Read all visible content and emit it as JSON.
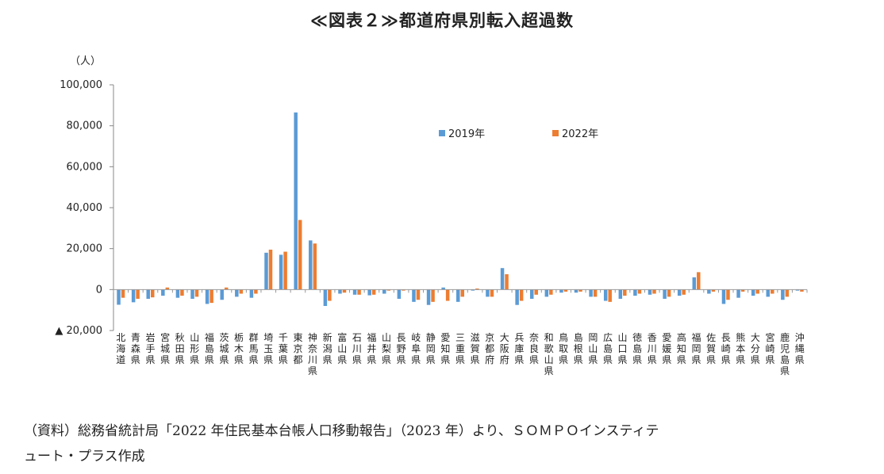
{
  "title": "≪図表２≫都道府県別転入超過数",
  "source_line1": "（資料）総務省統計局「2022 年住民基本台帳人口移動報告」（2023 年）より、ＳＯＭＰＯインスティテ",
  "source_line2": "ュート・プラス作成",
  "chart_data": {
    "type": "bar",
    "title": "≪図表２≫都道府県別転入超過数",
    "ylabel": "（人）",
    "xlabel": "",
    "ylim": [
      -20000,
      100000
    ],
    "yticks": [
      {
        "value": 100000,
        "label": "100,000"
      },
      {
        "value": 80000,
        "label": "80,000"
      },
      {
        "value": 60000,
        "label": "60,000"
      },
      {
        "value": 40000,
        "label": "40,000"
      },
      {
        "value": 20000,
        "label": "20,000"
      },
      {
        "value": 0,
        "label": "0"
      },
      {
        "value": -20000,
        "label": "▲ 20,000"
      }
    ],
    "legend_position": "top-center",
    "grid": false,
    "categories": [
      "北海道",
      "青森県",
      "岩手県",
      "宮城県",
      "秋田県",
      "山形県",
      "福島県",
      "茨城県",
      "栃木県",
      "群馬県",
      "埼玉県",
      "千葉県",
      "東京都",
      "神奈川県",
      "新潟県",
      "富山県",
      "石川県",
      "福井県",
      "山梨県",
      "長野県",
      "岐阜県",
      "静岡県",
      "愛知県",
      "三重県",
      "滋賀県",
      "京都府",
      "大阪府",
      "兵庫県",
      "奈良県",
      "和歌山県",
      "鳥取県",
      "島根県",
      "岡山県",
      "広島県",
      "山口県",
      "徳島県",
      "香川県",
      "愛媛県",
      "高知県",
      "福岡県",
      "佐賀県",
      "長崎県",
      "熊本県",
      "大分県",
      "宮崎県",
      "鹿児島県",
      "沖縄県"
    ],
    "series": [
      {
        "name": "2019年",
        "color": "#5b9bd5",
        "values": [
          -7400,
          -6200,
          -4500,
          -3000,
          -4000,
          -4500,
          -7000,
          -5000,
          -3500,
          -4000,
          18000,
          17000,
          86500,
          24000,
          -8000,
          -2000,
          -2500,
          -2800,
          -2000,
          -4500,
          -6000,
          -7500,
          1000,
          -6000,
          -500,
          -3500,
          10500,
          -7500,
          -4500,
          -3500,
          -1500,
          -1500,
          -3500,
          -5500,
          -4500,
          -3000,
          -2500,
          -4500,
          -3000,
          6000,
          -2000,
          -7000,
          -4000,
          -3000,
          -3500,
          -5000,
          -500
        ]
      },
      {
        "name": "2022年",
        "color": "#ed7d31",
        "values": [
          -4000,
          -4500,
          -3800,
          1000,
          -3000,
          -3500,
          -6500,
          1000,
          -2000,
          -2000,
          19500,
          18500,
          34000,
          22500,
          -5500,
          -1500,
          -2500,
          -2500,
          -500,
          -500,
          -5000,
          -6000,
          -5500,
          -3500,
          500,
          -3500,
          7500,
          -5500,
          -2500,
          -2500,
          -1000,
          -1000,
          -3500,
          -6000,
          -3000,
          -2000,
          -2000,
          -3500,
          -2500,
          8500,
          -1000,
          -5000,
          -1000,
          -2000,
          -2000,
          -3500,
          -1000
        ]
      }
    ]
  }
}
